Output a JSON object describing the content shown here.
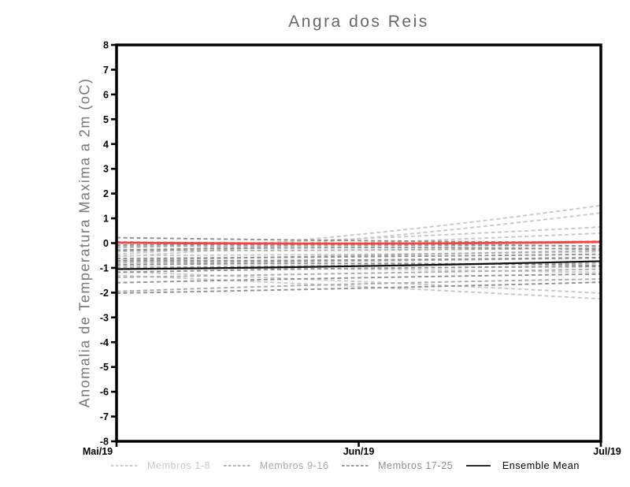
{
  "chart_data": {
    "type": "line",
    "title": "Angra dos Reis",
    "ylabel": "Anomalia de Temperatura Maxima a 2m (oC)",
    "xlabel": "",
    "x_categories": [
      "Mai/19",
      "Jun/19",
      "Jul/19"
    ],
    "ylim": [
      -8,
      8
    ],
    "ytick_step": 1,
    "ytick_labels": [
      "8",
      "7",
      "6",
      "5",
      "4",
      "3",
      "2",
      "1",
      "0",
      "-1",
      "-2",
      "-3",
      "-4",
      "-5",
      "-6",
      "-7",
      "-8"
    ],
    "grid": false,
    "legend_position": "bottom",
    "frame_color": "#000000",
    "groups": [
      {
        "label": "Membros 1-8",
        "color": "#c8c8c8",
        "style": "dashed",
        "members": [
          [
            -0.45,
            0.35,
            1.52
          ],
          [
            -0.55,
            0.18,
            1.22
          ],
          [
            -0.2,
            0.18,
            0.65
          ],
          [
            -0.35,
            0.0,
            0.4
          ],
          [
            -1.15,
            -1.55,
            -2.02
          ],
          [
            -1.3,
            -1.75,
            -2.25
          ],
          [
            -0.5,
            -0.45,
            -0.35
          ],
          [
            -0.95,
            -1.05,
            -1.18
          ]
        ]
      },
      {
        "label": "Membros 9-16",
        "color": "#aaaaaa",
        "style": "dashed",
        "members": [
          [
            0.05,
            0.0,
            0.08
          ],
          [
            -0.15,
            -0.1,
            -0.12
          ],
          [
            -0.3,
            -0.28,
            -0.2
          ],
          [
            -0.7,
            -0.5,
            -0.3
          ],
          [
            -0.8,
            -0.72,
            -0.6
          ],
          [
            -0.98,
            -0.9,
            -0.8
          ],
          [
            -1.38,
            -1.22,
            -1.05
          ],
          [
            -1.95,
            -1.65,
            -1.45
          ]
        ]
      },
      {
        "label": "Membros 17-25",
        "color": "#8f8f8f",
        "style": "dashed",
        "members": [
          [
            0.22,
            0.1,
            0.02
          ],
          [
            -0.08,
            -0.05,
            -0.12
          ],
          [
            -0.28,
            -0.18,
            -0.25
          ],
          [
            -0.62,
            -0.55,
            -0.45
          ],
          [
            -0.72,
            -0.68,
            -0.58
          ],
          [
            -0.88,
            -0.82,
            -0.9
          ],
          [
            -1.18,
            -1.02,
            -0.95
          ],
          [
            -1.6,
            -1.4,
            -1.25
          ],
          [
            -2.02,
            -1.82,
            -1.58
          ]
        ]
      },
      {
        "label": "Ensemble Mean",
        "color": "#0d0d0d",
        "style": "solid",
        "members": [
          [
            -1.05,
            -0.93,
            -0.73
          ]
        ]
      }
    ],
    "reference_line": {
      "name": "zero-anomaly-reference",
      "color": "#f84242",
      "style": "solid",
      "values": [
        0.02,
        -0.02,
        0.05
      ]
    }
  }
}
